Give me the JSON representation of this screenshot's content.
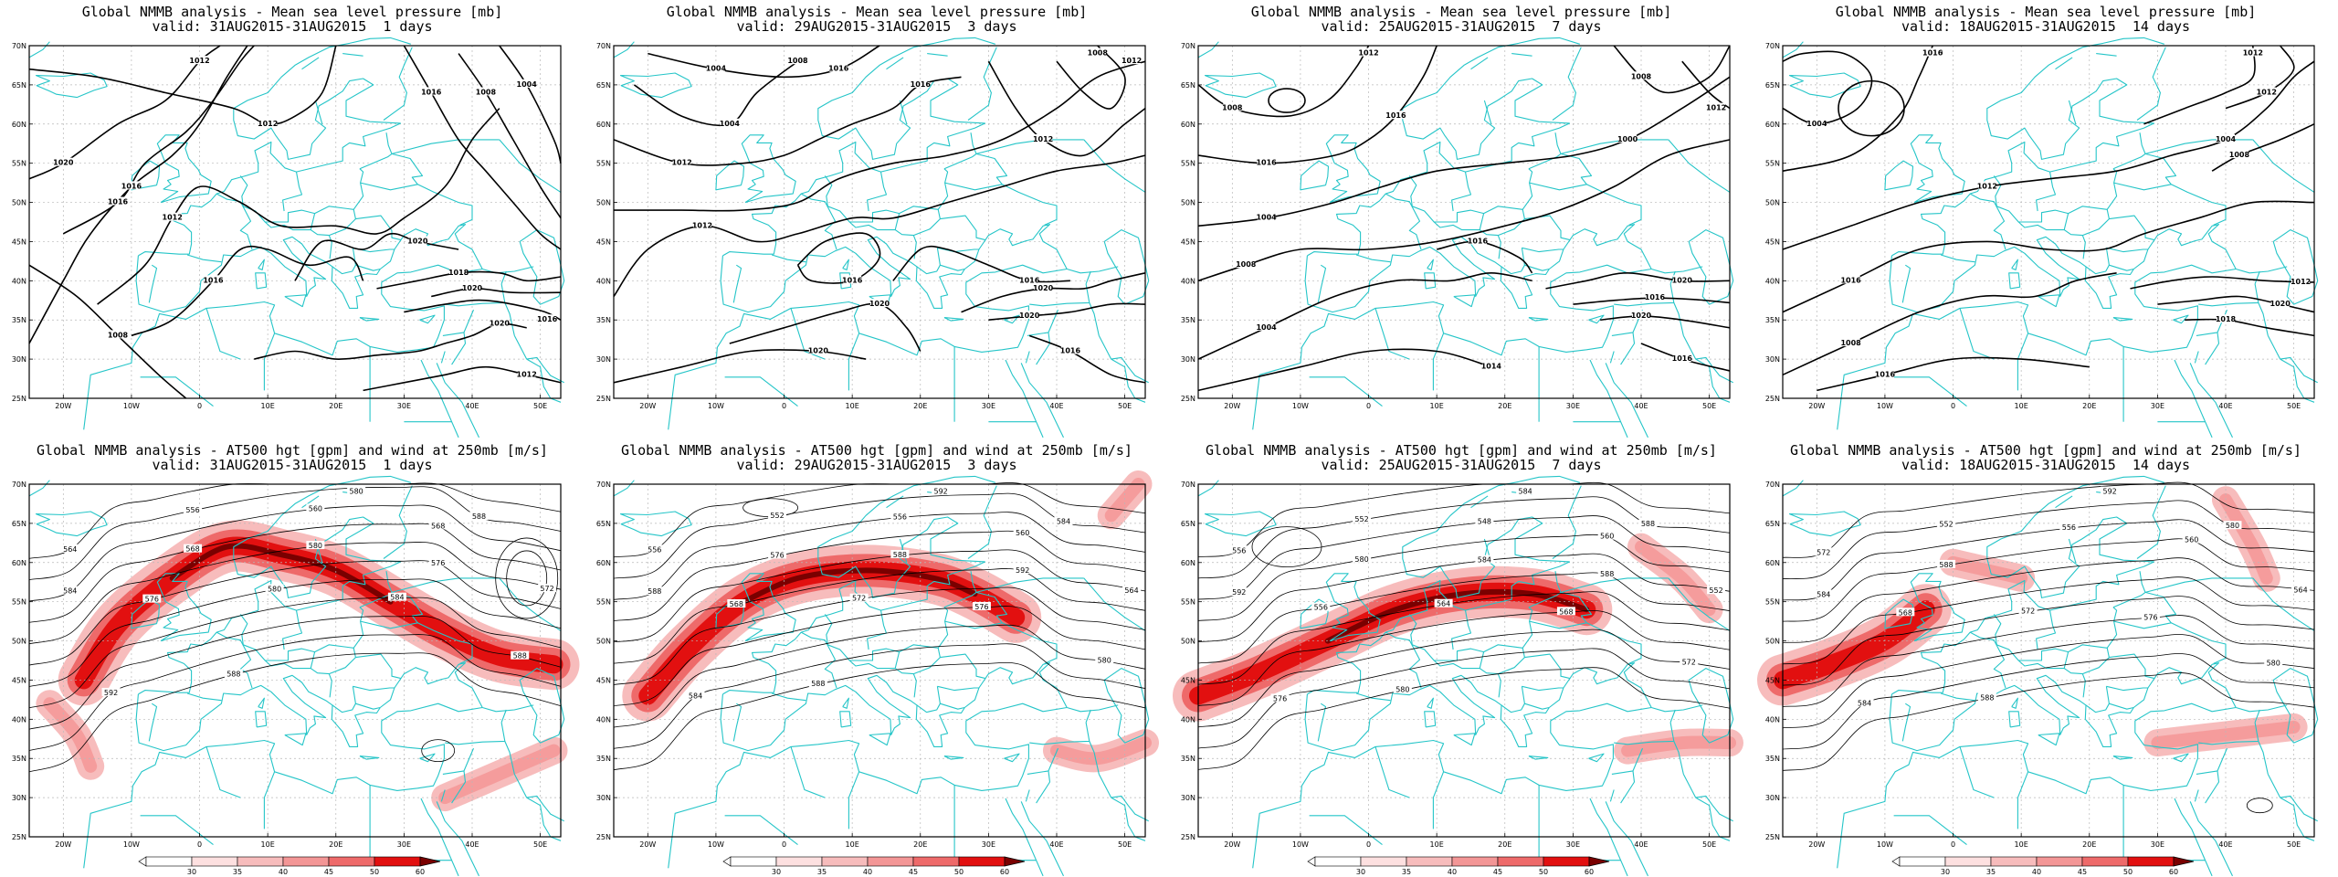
{
  "panels": [
    {
      "title_line1": "Global NMMB analysis - Mean sea level pressure [mb]",
      "title_line2": "valid: 31AUG2015-31AUG2015  1 days",
      "kind": "mslp",
      "contour_labels": [
        "1020",
        "1012",
        "1016",
        "1016",
        "1012",
        "1016",
        "1020",
        "1018",
        "1020",
        "1016",
        "1020",
        "1012",
        "1008",
        "1004",
        "1016",
        "1008",
        "1012"
      ]
    },
    {
      "title_line1": "Global NMMB analysis - Mean sea level pressure [mb]",
      "title_line2": "valid: 29AUG2015-31AUG2015  3 days",
      "kind": "mslp",
      "contour_labels": [
        "1004",
        "1008",
        "1016",
        "1012",
        "1012",
        "1016",
        "1016",
        "1020",
        "1020",
        "1020",
        "1020",
        "1016",
        "1012",
        "1008",
        "1016",
        "1004",
        "1012"
      ]
    },
    {
      "title_line1": "Global NMMB analysis - Mean sea level pressure [mb]",
      "title_line2": "valid: 25AUG2015-31AUG2015  7 days",
      "kind": "mslp",
      "contour_labels": [
        "1008",
        "1016",
        "1000",
        "1008",
        "1004",
        "1016",
        "1020",
        "1016",
        "1020",
        "1014",
        "1016",
        "1012",
        "1008",
        "1012",
        "1016",
        "1004"
      ]
    },
    {
      "title_line1": "Global NMMB analysis - Mean sea level pressure [mb]",
      "title_line2": "valid: 18AUG2015-31AUG2015  14 days",
      "kind": "mslp",
      "contour_labels": [
        "1008",
        "1020",
        "1004",
        "1016",
        "1008",
        "1012",
        "1020",
        "1018",
        "1016",
        "1012",
        "1012",
        "1008",
        "1004",
        "1016",
        "1012"
      ]
    },
    {
      "title_line1": "Global NMMB analysis - AT500 hgt [gpm] and wind at 250mb [m/s]",
      "title_line2": "valid: 31AUG2015-31AUG2015  1 days",
      "kind": "z500",
      "contour_labels": [
        "564",
        "556",
        "560",
        "568",
        "572",
        "576",
        "580",
        "584",
        "588",
        "592",
        "588",
        "580",
        "588",
        "584",
        "568",
        "580",
        "576"
      ]
    },
    {
      "title_line1": "Global NMMB analysis - AT500 hgt [gpm] and wind at 250mb [m/s]",
      "title_line2": "valid: 29AUG2015-31AUG2015  3 days",
      "kind": "z500",
      "contour_labels": [
        "556",
        "552",
        "556",
        "560",
        "564",
        "568",
        "572",
        "576",
        "580",
        "584",
        "588",
        "592",
        "584",
        "588",
        "576",
        "588",
        "592"
      ]
    },
    {
      "title_line1": "Global NMMB analysis - AT500 hgt [gpm] and wind at 250mb [m/s]",
      "title_line2": "valid: 25AUG2015-31AUG2015  7 days",
      "kind": "z500",
      "contour_labels": [
        "556",
        "552",
        "548",
        "560",
        "552",
        "556",
        "564",
        "568",
        "572",
        "576",
        "580",
        "584",
        "588",
        "592",
        "580",
        "584",
        "588"
      ]
    },
    {
      "title_line1": "Global NMMB analysis - AT500 hgt [gpm] and wind at 250mb [m/s]",
      "title_line2": "valid: 18AUG2015-31AUG2015  14 days",
      "kind": "z500",
      "contour_labels": [
        "572",
        "552",
        "556",
        "560",
        "564",
        "568",
        "572",
        "576",
        "580",
        "584",
        "588",
        "592",
        "580",
        "584",
        "588"
      ]
    }
  ],
  "lat_labels": [
    "70N",
    "65N",
    "60N",
    "55N",
    "50N",
    "45N",
    "40N",
    "35N",
    "30N",
    "25N"
  ],
  "lon_labels": [
    "20W",
    "10W",
    "0",
    "10E",
    "20E",
    "30E",
    "40E",
    "50E"
  ],
  "colorbar_ticks": [
    "30",
    "35",
    "40",
    "45",
    "50",
    "60"
  ],
  "colors": {
    "coast": "#25c5c8",
    "contour": "#000000",
    "grid": "#b8b8b8",
    "jet_light": "#f7bcbc",
    "jet_mid": "#ee6a6a",
    "jet_strong": "#e21010",
    "jet_core": "#7a0000"
  }
}
